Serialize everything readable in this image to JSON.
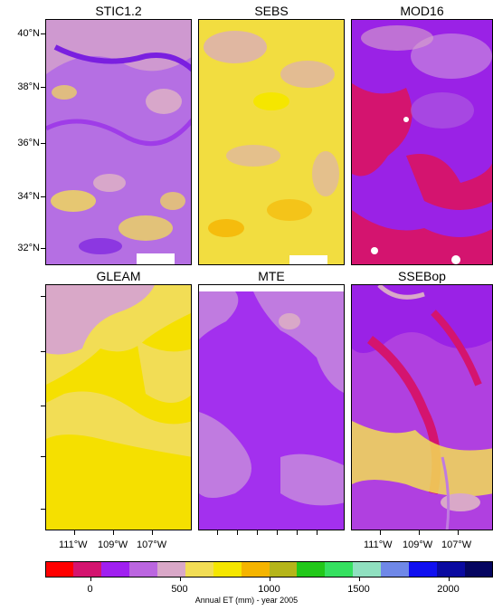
{
  "panels": [
    {
      "title": "STIC1.2",
      "dominant": "purple"
    },
    {
      "title": "SEBS",
      "dominant": "yellow"
    },
    {
      "title": "MOD16",
      "dominant": "magenta-purple"
    },
    {
      "title": "GLEAM",
      "dominant": "yellow-pink"
    },
    {
      "title": "MTE",
      "dominant": "violet"
    },
    {
      "title": "SSEBop",
      "dominant": "mixed"
    }
  ],
  "lat_labels": [
    "40°N",
    "38°N",
    "36°N",
    "34°N",
    "32°N"
  ],
  "lon_labels": [
    "111°W",
    "109°W",
    "107°W"
  ],
  "colorbar": {
    "colors": [
      "#ff0000",
      "#d4146f",
      "#a020f0",
      "#bb66e0",
      "#d9a8c8",
      "#f2dd55",
      "#f5e600",
      "#f5b400",
      "#b5b51a",
      "#22c81a",
      "#35e060",
      "#90e0c0",
      "#6f88e8",
      "#1010f0",
      "#0a0aa0",
      "#050560"
    ],
    "tick_labels": [
      "0",
      "500",
      "1000",
      "1500",
      "2000"
    ],
    "tick_values": [
      0,
      500,
      1000,
      1500,
      2000
    ],
    "range": [
      -250,
      2250
    ],
    "title": "Annual ET (mm) - year 2005"
  }
}
